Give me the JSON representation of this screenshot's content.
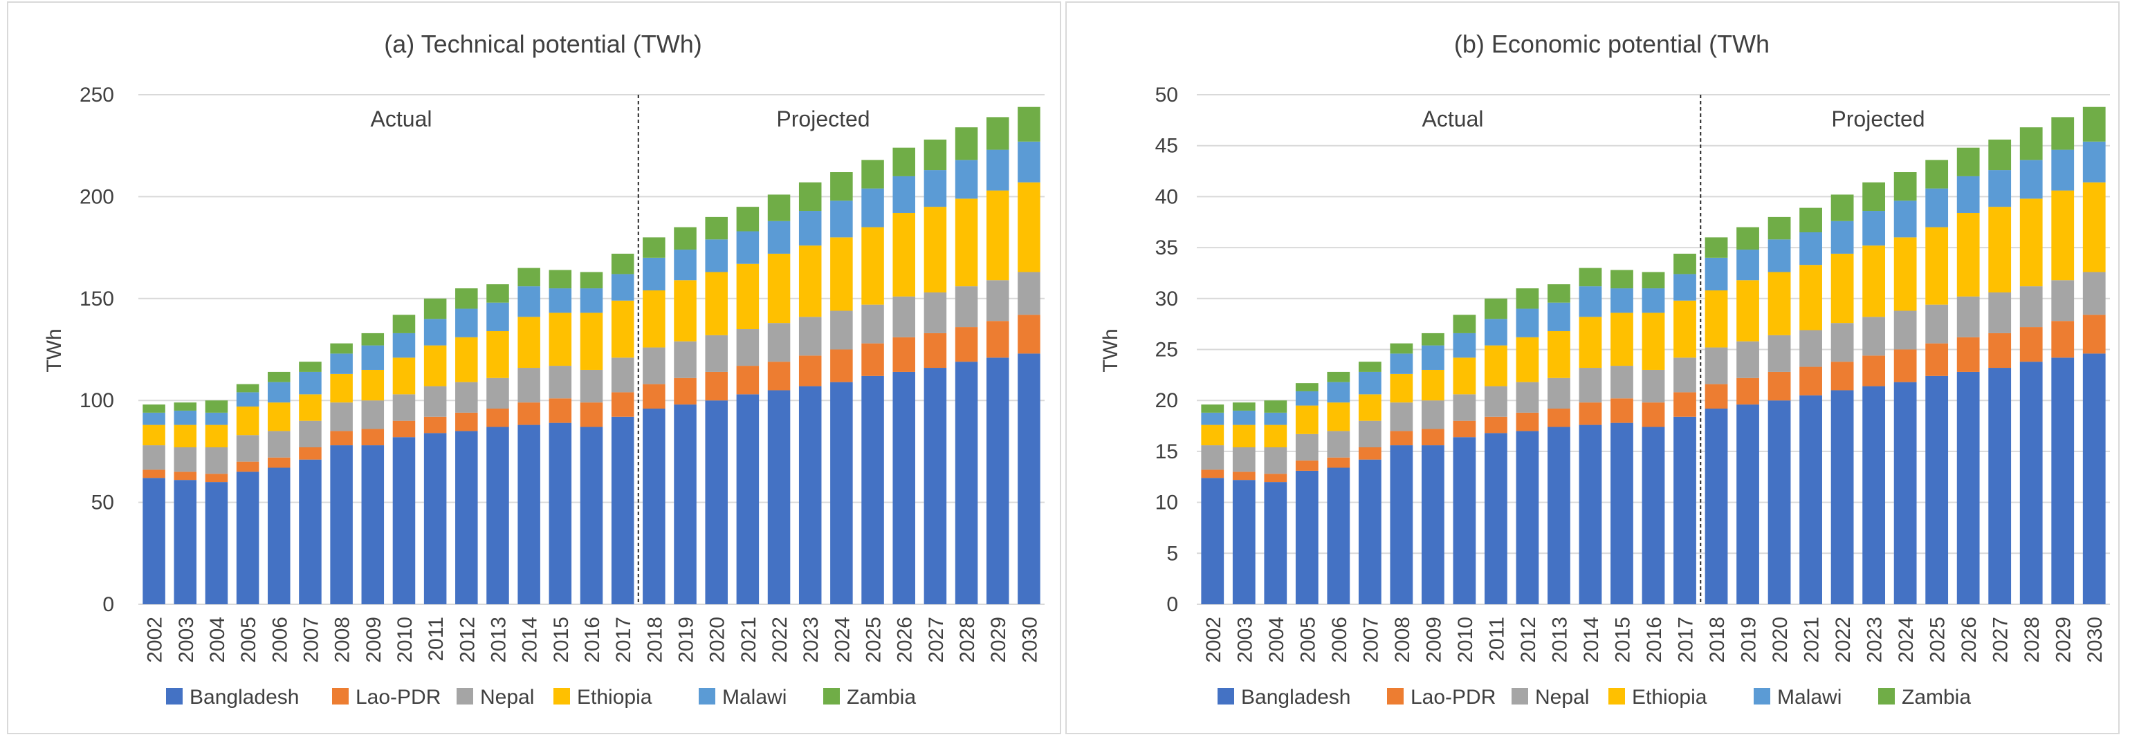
{
  "chart_data": [
    {
      "type": "bar",
      "stacked": true,
      "title": "(a) Technical potential (TWh)",
      "xlabel": "",
      "ylabel": "TWh",
      "ylim": [
        0,
        250
      ],
      "yticks": [
        0,
        50,
        100,
        150,
        200,
        250
      ],
      "ytick_labels": [
        "0",
        "50",
        "100",
        "150",
        "200",
        "250"
      ],
      "grid": true,
      "legend_position": "bottom",
      "annotations": [
        "Actual",
        "Projected"
      ],
      "divider_after_category": "2017",
      "categories": [
        "2002",
        "2003",
        "2004",
        "2005",
        "2006",
        "2007",
        "2008",
        "2009",
        "2010",
        "2011",
        "2012",
        "2013",
        "2014",
        "2015",
        "2016",
        "2017",
        "2018",
        "2019",
        "2020",
        "2021",
        "2022",
        "2023",
        "2024",
        "2025",
        "2026",
        "2027",
        "2028",
        "2029",
        "2030"
      ],
      "series": [
        {
          "name": "Bangladesh",
          "color": "#4472C4",
          "values": [
            62,
            61,
            60,
            65,
            67,
            71,
            78,
            78,
            82,
            84,
            85,
            87,
            88,
            89,
            87,
            92,
            96,
            98,
            100,
            103,
            105,
            107,
            109,
            112,
            114,
            116,
            119,
            121,
            123
          ]
        },
        {
          "name": "Lao-PDR",
          "color": "#ED7D31",
          "values": [
            4,
            4,
            4,
            5,
            5,
            6,
            7,
            8,
            8,
            8,
            9,
            9,
            11,
            12,
            12,
            12,
            12,
            13,
            14,
            14,
            14,
            15,
            16,
            16,
            17,
            17,
            17,
            18,
            19
          ]
        },
        {
          "name": "Nepal",
          "color": "#A5A5A5",
          "values": [
            12,
            12,
            13,
            13,
            13,
            13,
            14,
            14,
            13,
            15,
            15,
            15,
            17,
            16,
            16,
            17,
            18,
            18,
            18,
            18,
            19,
            19,
            19,
            19,
            20,
            20,
            20,
            20,
            21
          ]
        },
        {
          "name": "Ethiopia",
          "color": "#FFC000",
          "values": [
            10,
            11,
            11,
            14,
            14,
            13,
            14,
            15,
            18,
            20,
            22,
            23,
            25,
            26,
            28,
            28,
            28,
            30,
            31,
            32,
            34,
            35,
            36,
            38,
            41,
            42,
            43,
            44,
            44
          ]
        },
        {
          "name": "Malawi",
          "color": "#5B9BD5",
          "values": [
            6,
            7,
            6,
            7,
            10,
            11,
            10,
            12,
            12,
            13,
            14,
            14,
            15,
            12,
            12,
            13,
            16,
            15,
            16,
            16,
            16,
            17,
            18,
            19,
            18,
            18,
            19,
            20,
            20
          ]
        },
        {
          "name": "Zambia",
          "color": "#70AD47",
          "values": [
            4,
            4,
            6,
            4,
            5,
            5,
            5,
            6,
            9,
            10,
            10,
            9,
            9,
            9,
            8,
            10,
            10,
            11,
            11,
            12,
            13,
            14,
            14,
            14,
            14,
            15,
            16,
            16,
            17
          ]
        }
      ]
    },
    {
      "type": "bar",
      "stacked": true,
      "title": "(b) Economic potential (TWh",
      "xlabel": "",
      "ylabel": "TWh",
      "ylim": [
        0,
        50
      ],
      "yticks": [
        0,
        5,
        10,
        15,
        20,
        25,
        30,
        35,
        40,
        45,
        50
      ],
      "ytick_labels": [
        "0",
        "5",
        "10",
        "15",
        "20",
        "25",
        "30",
        "35",
        "40",
        "45",
        "50"
      ],
      "grid": true,
      "legend_position": "bottom",
      "annotations": [
        "Actual",
        "Projected"
      ],
      "divider_after_category": "2017",
      "categories": [
        "2002",
        "2003",
        "2004",
        "2005",
        "2006",
        "2007",
        "2008",
        "2009",
        "2010",
        "2011",
        "2012",
        "2013",
        "2014",
        "2015",
        "2016",
        "2017",
        "2018",
        "2019",
        "2020",
        "2021",
        "2022",
        "2023",
        "2024",
        "2025",
        "2026",
        "2027",
        "2028",
        "2029",
        "2030"
      ],
      "series": [
        {
          "name": "Bangladesh",
          "color": "#4472C4",
          "values": [
            12.4,
            12.2,
            12.0,
            13.1,
            13.4,
            14.2,
            15.6,
            15.6,
            16.4,
            16.8,
            17.0,
            17.4,
            17.6,
            17.8,
            17.4,
            18.4,
            19.2,
            19.6,
            20.0,
            20.5,
            21.0,
            21.4,
            21.8,
            22.4,
            22.8,
            23.2,
            23.8,
            24.2,
            24.6
          ]
        },
        {
          "name": "Lao-PDR",
          "color": "#ED7D31",
          "values": [
            0.8,
            0.8,
            0.8,
            1.0,
            1.0,
            1.2,
            1.4,
            1.6,
            1.6,
            1.6,
            1.8,
            1.8,
            2.2,
            2.4,
            2.4,
            2.4,
            2.4,
            2.6,
            2.8,
            2.8,
            2.8,
            3.0,
            3.2,
            3.2,
            3.4,
            3.4,
            3.4,
            3.6,
            3.8
          ]
        },
        {
          "name": "Nepal",
          "color": "#A5A5A5",
          "values": [
            2.4,
            2.4,
            2.6,
            2.6,
            2.6,
            2.6,
            2.8,
            2.8,
            2.6,
            3.0,
            3.0,
            3.0,
            3.4,
            3.2,
            3.2,
            3.4,
            3.6,
            3.6,
            3.6,
            3.6,
            3.8,
            3.8,
            3.8,
            3.8,
            4.0,
            4.0,
            4.0,
            4.0,
            4.2
          ]
        },
        {
          "name": "Ethiopia",
          "color": "#FFC000",
          "values": [
            2.0,
            2.2,
            2.2,
            2.8,
            2.8,
            2.6,
            2.8,
            3.0,
            3.6,
            4.0,
            4.4,
            4.6,
            5.0,
            5.2,
            5.6,
            5.6,
            5.6,
            6.0,
            6.2,
            6.4,
            6.8,
            7.0,
            7.2,
            7.6,
            8.2,
            8.4,
            8.6,
            8.8,
            8.8
          ]
        },
        {
          "name": "Malawi",
          "color": "#5B9BD5",
          "values": [
            1.2,
            1.4,
            1.2,
            1.4,
            2.0,
            2.2,
            2.0,
            2.4,
            2.4,
            2.6,
            2.8,
            2.8,
            3.0,
            2.4,
            2.4,
            2.6,
            3.2,
            3.0,
            3.2,
            3.2,
            3.2,
            3.4,
            3.6,
            3.8,
            3.6,
            3.6,
            3.8,
            4.0,
            4.0
          ]
        },
        {
          "name": "Zambia",
          "color": "#70AD47",
          "values": [
            0.8,
            0.8,
            1.2,
            0.8,
            1.0,
            1.0,
            1.0,
            1.2,
            1.8,
            2.0,
            2.0,
            1.8,
            1.8,
            1.8,
            1.6,
            2.0,
            2.0,
            2.2,
            2.2,
            2.4,
            2.6,
            2.8,
            2.8,
            2.8,
            2.8,
            3.0,
            3.2,
            3.2,
            3.4
          ]
        }
      ]
    }
  ]
}
